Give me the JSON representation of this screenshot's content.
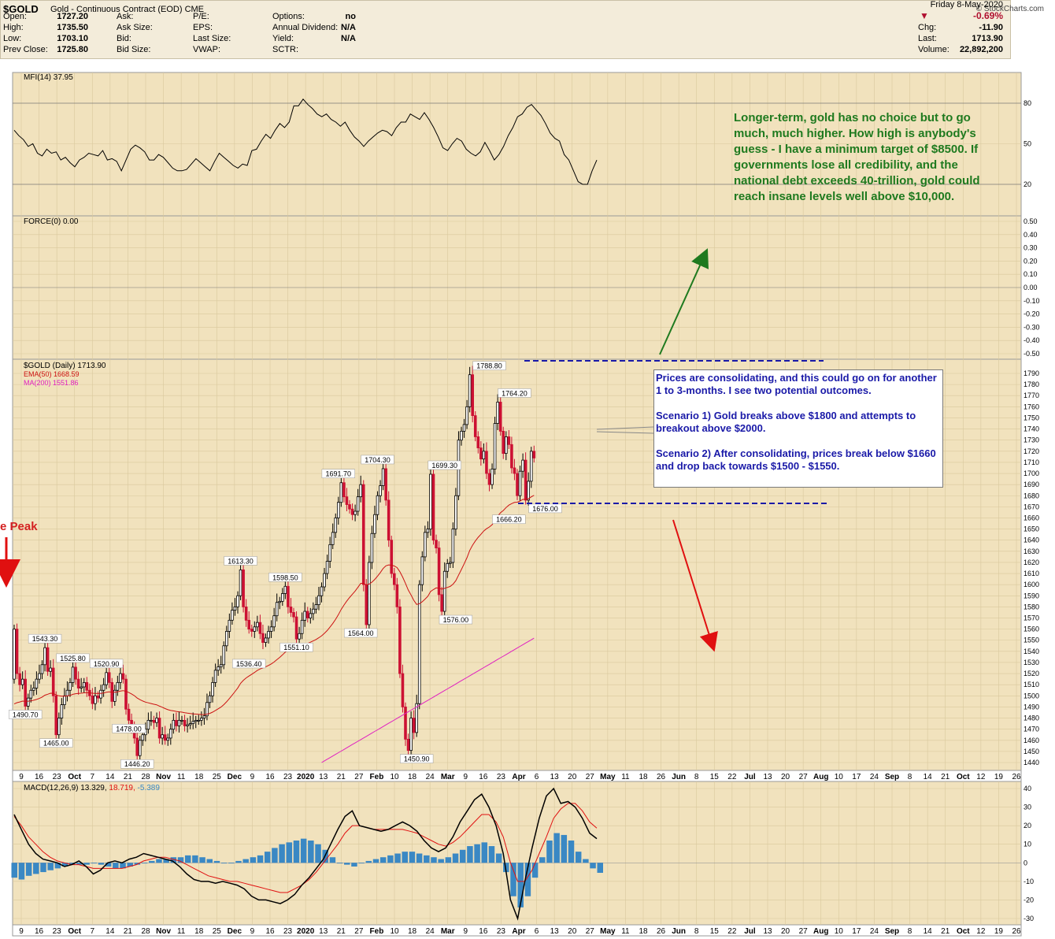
{
  "header": {
    "symbol": "$GOLD",
    "name": "Gold - Continuous Contract (EOD)",
    "exchange": "CME",
    "brand": "© StockCharts.com"
  },
  "quote": {
    "date": "Friday  8-May-2020",
    "change_pct": "-0.69%",
    "left": [
      {
        "label": "Open:",
        "value": "1727.20"
      },
      {
        "label": "High:",
        "value": "1735.50"
      },
      {
        "label": "Low:",
        "value": "1703.10"
      },
      {
        "label": "Prev Close:",
        "value": "1725.80"
      }
    ],
    "col2": [
      "Ask:",
      "Ask Size:",
      "Bid:",
      "Bid Size:"
    ],
    "col3": [
      "P/E:",
      "EPS:",
      "Last Size:",
      "VWAP:"
    ],
    "col4": [
      {
        "label": "Options:",
        "value": "no"
      },
      {
        "label": "Annual Dividend:",
        "value": "N/A"
      },
      {
        "label": "Yield:",
        "value": "N/A"
      },
      {
        "label": "SCTR:",
        "value": ""
      }
    ],
    "right": [
      {
        "label": "Chg:",
        "value": "-11.90"
      },
      {
        "label": "Last:",
        "value": "1713.90"
      },
      {
        "label": "Volume:",
        "value": "22,892,200"
      }
    ]
  },
  "annotations": {
    "green_note": "Longer-term, gold has no choice but to go much, much higher. How high is anybody's guess - I have a minimum target of $8500. If governments lose all credibility, and the national debt exceeds 40-trillion, gold could reach insane levels well above $10,000.",
    "blue_note_1": "Prices are consolidating, and this could go on for another 1 to 3-months. I see two potential outcomes.",
    "blue_note_2": "Scenario 1) Gold breaks above $1800 and attempts to breakout above $2000.",
    "blue_note_3": "Scenario 2) After consolidating, prices break below $1660 and drop back towards $1500 - $1550.",
    "peak_label": "e Peak"
  },
  "colors": {
    "panel_bg": "#f1e2bd",
    "up_candle": "#000000",
    "down_candle": "#cc1133",
    "ema50": "#cc1111",
    "ma200": "#e020c0",
    "macd_line": "#000000",
    "signal_line": "#e01010",
    "histogram": "#3a88c4",
    "resistance_dash": "#1a1aa8",
    "green_arrow": "#1f7a1f",
    "red_arrow": "#e01010"
  },
  "chart_data": [
    {
      "type": "line",
      "panel": "mfi",
      "label": "MFI(14) 37.95",
      "y_ticks": [
        "80",
        "50",
        "20"
      ],
      "ylim": [
        0,
        100
      ],
      "values": [
        60,
        56,
        53,
        48,
        50,
        43,
        41,
        46,
        43,
        44,
        38,
        40,
        36,
        33,
        38,
        40,
        43,
        42,
        41,
        45,
        38,
        39,
        37,
        30,
        38,
        46,
        49,
        47,
        44,
        38,
        38,
        42,
        40,
        36,
        32,
        30,
        30,
        31,
        35,
        39,
        36,
        33,
        30,
        37,
        43,
        40,
        37,
        34,
        32,
        35,
        34,
        45,
        46,
        52,
        57,
        54,
        60,
        65,
        62,
        66,
        78,
        78,
        83,
        79,
        76,
        72,
        70,
        72,
        68,
        66,
        63,
        66,
        60,
        55,
        52,
        48,
        52,
        55,
        58,
        60,
        59,
        56,
        62,
        66,
        66,
        72,
        70,
        68,
        73,
        68,
        62,
        55,
        47,
        45,
        50,
        54,
        52,
        46,
        43,
        41,
        44,
        51,
        45,
        38,
        42,
        48,
        56,
        62,
        70,
        72,
        77,
        79,
        75,
        71,
        65,
        58,
        54,
        52,
        42,
        38,
        30,
        22,
        20,
        20,
        30,
        37.95
      ]
    },
    {
      "type": "line",
      "panel": "force",
      "label": "FORCE(0) 0.00",
      "y_ticks": [
        "0.50",
        "0.40",
        "0.30",
        "0.20",
        "0.10",
        "0.00",
        "-0.10",
        "-0.20",
        "-0.30",
        "-0.40",
        "-0.50"
      ],
      "ylim": [
        -0.55,
        0.55
      ],
      "values": [
        0.0
      ]
    },
    {
      "type": "candlestick",
      "panel": "price",
      "label": "$GOLD (Daily) 1713.90",
      "legend": [
        "EMA(50) 1668.59",
        "MA(200) 1551.86"
      ],
      "ylim": [
        1440,
        1795
      ],
      "y_ticks": [
        "1790",
        "1780",
        "1770",
        "1760",
        "1750",
        "1740",
        "1730",
        "1720",
        "1710",
        "1700",
        "1690",
        "1680",
        "1670",
        "1660",
        "1650",
        "1640",
        "1630",
        "1620",
        "1610",
        "1600",
        "1590",
        "1580",
        "1570",
        "1560",
        "1550",
        "1540",
        "1530",
        "1520",
        "1510",
        "1500",
        "1490",
        "1480",
        "1470",
        "1460",
        "1450",
        "1440"
      ],
      "closes": [
        1560,
        1520,
        1510,
        1515,
        1490.7,
        1498,
        1505,
        1507,
        1515,
        1520,
        1528,
        1543.3,
        1522,
        1525,
        1500,
        1465,
        1480,
        1492,
        1500,
        1505,
        1512,
        1525.8,
        1515,
        1507,
        1508,
        1512,
        1505,
        1500,
        1493,
        1500,
        1498,
        1505,
        1510,
        1520.9,
        1512,
        1495,
        1505,
        1512,
        1520,
        1515,
        1488,
        1478,
        1470,
        1462,
        1446.2,
        1460,
        1465,
        1470,
        1478,
        1478,
        1476,
        1480,
        1462,
        1465,
        1460,
        1462,
        1470,
        1478,
        1473,
        1478,
        1478,
        1473,
        1474,
        1475,
        1477,
        1478,
        1478,
        1480,
        1482,
        1494,
        1500,
        1512,
        1523,
        1526,
        1528,
        1545,
        1558,
        1568,
        1577,
        1580,
        1590,
        1613.3,
        1580,
        1568,
        1560,
        1558,
        1562,
        1566,
        1556,
        1548,
        1552,
        1558,
        1562,
        1572,
        1584,
        1585,
        1592,
        1598.5,
        1580,
        1575,
        1571,
        1551.1,
        1556,
        1568,
        1576,
        1570,
        1574,
        1578,
        1582,
        1590,
        1598,
        1610,
        1621,
        1636,
        1647,
        1660,
        1674,
        1691.7,
        1679,
        1672,
        1668,
        1663,
        1666,
        1679,
        1690,
        1600,
        1564,
        1620,
        1646,
        1663,
        1680,
        1689,
        1704.3,
        1676,
        1640,
        1610,
        1600,
        1580,
        1520,
        1490,
        1461,
        1450.9,
        1480,
        1467,
        1493,
        1600,
        1625,
        1647,
        1650,
        1699.3,
        1640,
        1633,
        1591,
        1576,
        1612,
        1619,
        1620,
        1650,
        1680,
        1730,
        1738,
        1744,
        1760,
        1788.8,
        1752,
        1733,
        1723,
        1713,
        1720,
        1700,
        1690,
        1704,
        1745,
        1764.2,
        1738,
        1718,
        1733,
        1726,
        1705,
        1700,
        1680,
        1702,
        1712,
        1676,
        1693,
        1720,
        1713.9
      ],
      "labeled_values": [
        "1543.30",
        "1525.80",
        "1520.90",
        "1490.70",
        "1478.00",
        "1465.00",
        "1446.20",
        "1613.30",
        "1536.40",
        "1598.50",
        "1551.10",
        "1691.70",
        "1704.30",
        "1564.00",
        "1699.30",
        "1576.00",
        "1450.90",
        "1788.80",
        "1764.20",
        "1666.20",
        "1676.00"
      ],
      "x_labels": [
        "9",
        "16",
        "23",
        "Oct",
        "7",
        "14",
        "21",
        "28",
        "Nov",
        "11",
        "18",
        "25",
        "Dec",
        "9",
        "16",
        "23",
        "2020",
        "13",
        "21",
        "27",
        "Feb",
        "10",
        "18",
        "24",
        "Mar",
        "9",
        "16",
        "23",
        "Apr",
        "6",
        "13",
        "20",
        "27",
        "May",
        "11",
        "18",
        "26",
        "Jun",
        "8",
        "15",
        "22",
        "Jul",
        "13",
        "20",
        "27",
        "Aug",
        "10",
        "17",
        "24",
        "Sep",
        "8",
        "14",
        "21",
        "Oct",
        "12",
        "19",
        "26"
      ]
    },
    {
      "type": "line",
      "panel": "macd",
      "label": "MACD(12,26,9)",
      "legend_values": [
        "13.329",
        "18.719",
        "-5.389"
      ],
      "ylim": [
        -32,
        42
      ],
      "y_ticks": [
        "40",
        "30",
        "20",
        "10",
        "0",
        "-10",
        "-20",
        "-30"
      ],
      "macd": [
        26,
        18,
        10,
        5,
        2,
        1,
        0,
        -2,
        -1,
        1,
        -2,
        -6,
        -4,
        0,
        1,
        0,
        2,
        3,
        5,
        4,
        3,
        2,
        1,
        -2,
        -6,
        -9,
        -10,
        -10,
        -11,
        -10,
        -11,
        -12,
        -14,
        -18,
        -20,
        -20,
        -21,
        -22,
        -20,
        -17,
        -12,
        -8,
        -3,
        2,
        10,
        18,
        25,
        28,
        20,
        19,
        18,
        17,
        18,
        20,
        22,
        20,
        17,
        12,
        8,
        6,
        8,
        14,
        22,
        28,
        34,
        37,
        30,
        20,
        5,
        -20,
        -30,
        -10,
        8,
        24,
        36,
        40,
        32,
        33,
        30,
        24,
        16,
        13
      ],
      "signal": [
        25,
        20,
        14,
        10,
        6,
        3,
        1,
        0,
        -1,
        -1,
        -2,
        -3,
        -3,
        -3,
        -3,
        -3,
        -2,
        -1,
        1,
        2,
        3,
        3,
        2,
        1,
        -1,
        -3,
        -5,
        -7,
        -8,
        -9,
        -10,
        -10,
        -11,
        -12,
        -13,
        -14,
        -15,
        -16,
        -16,
        -14,
        -12,
        -9,
        -5,
        0,
        5,
        10,
        16,
        20,
        20,
        19,
        18,
        18,
        18,
        18,
        18,
        17,
        16,
        14,
        12,
        10,
        9,
        11,
        14,
        18,
        22,
        26,
        26,
        22,
        14,
        0,
        -10,
        -10,
        -4,
        5,
        14,
        24,
        29,
        32,
        32,
        28,
        22,
        18.719
      ],
      "histogram": [
        -8,
        -9,
        -7,
        -6,
        -5,
        -4,
        -3,
        -2,
        -1,
        -1,
        -1,
        0,
        -1,
        -2,
        -3,
        -3,
        -2,
        -1,
        0,
        1,
        2,
        2,
        3,
        3,
        4,
        4,
        3,
        2,
        1,
        0,
        0,
        1,
        2,
        3,
        4,
        6,
        8,
        10,
        11,
        12,
        13,
        12,
        10,
        7,
        3,
        0,
        -1,
        -2,
        0,
        1,
        2,
        3,
        4,
        5,
        6,
        6,
        5,
        4,
        3,
        2,
        3,
        5,
        7,
        9,
        10,
        11,
        9,
        5,
        -5,
        -18,
        -24,
        -18,
        -8,
        3,
        12,
        16,
        15,
        12,
        6,
        2,
        -3,
        -5.389
      ]
    }
  ]
}
